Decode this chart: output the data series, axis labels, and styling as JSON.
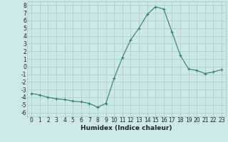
{
  "x": [
    0,
    1,
    2,
    3,
    4,
    5,
    6,
    7,
    8,
    9,
    10,
    11,
    12,
    13,
    14,
    15,
    16,
    17,
    18,
    19,
    20,
    21,
    22,
    23
  ],
  "y": [
    -3.5,
    -3.7,
    -4.0,
    -4.2,
    -4.3,
    -4.5,
    -4.6,
    -4.8,
    -5.3,
    -4.8,
    -1.5,
    1.2,
    3.5,
    5.0,
    6.8,
    7.8,
    7.5,
    4.5,
    1.5,
    -0.3,
    -0.5,
    -0.9,
    -0.7,
    -0.4
  ],
  "xlabel": "Humidex (Indice chaleur)",
  "xlim": [
    -0.5,
    23.5
  ],
  "ylim": [
    -6.5,
    8.5
  ],
  "yticks": [
    -6,
    -5,
    -4,
    -3,
    -2,
    -1,
    0,
    1,
    2,
    3,
    4,
    5,
    6,
    7,
    8
  ],
  "xticks": [
    0,
    1,
    2,
    3,
    4,
    5,
    6,
    7,
    8,
    9,
    10,
    11,
    12,
    13,
    14,
    15,
    16,
    17,
    18,
    19,
    20,
    21,
    22,
    23
  ],
  "line_color": "#2e7d6e",
  "marker": "+",
  "bg_color": "#cce8e8",
  "grid_color": "#aac8c8",
  "font_color": "#222222",
  "tick_fontsize": 5.5,
  "label_fontsize": 6.5
}
